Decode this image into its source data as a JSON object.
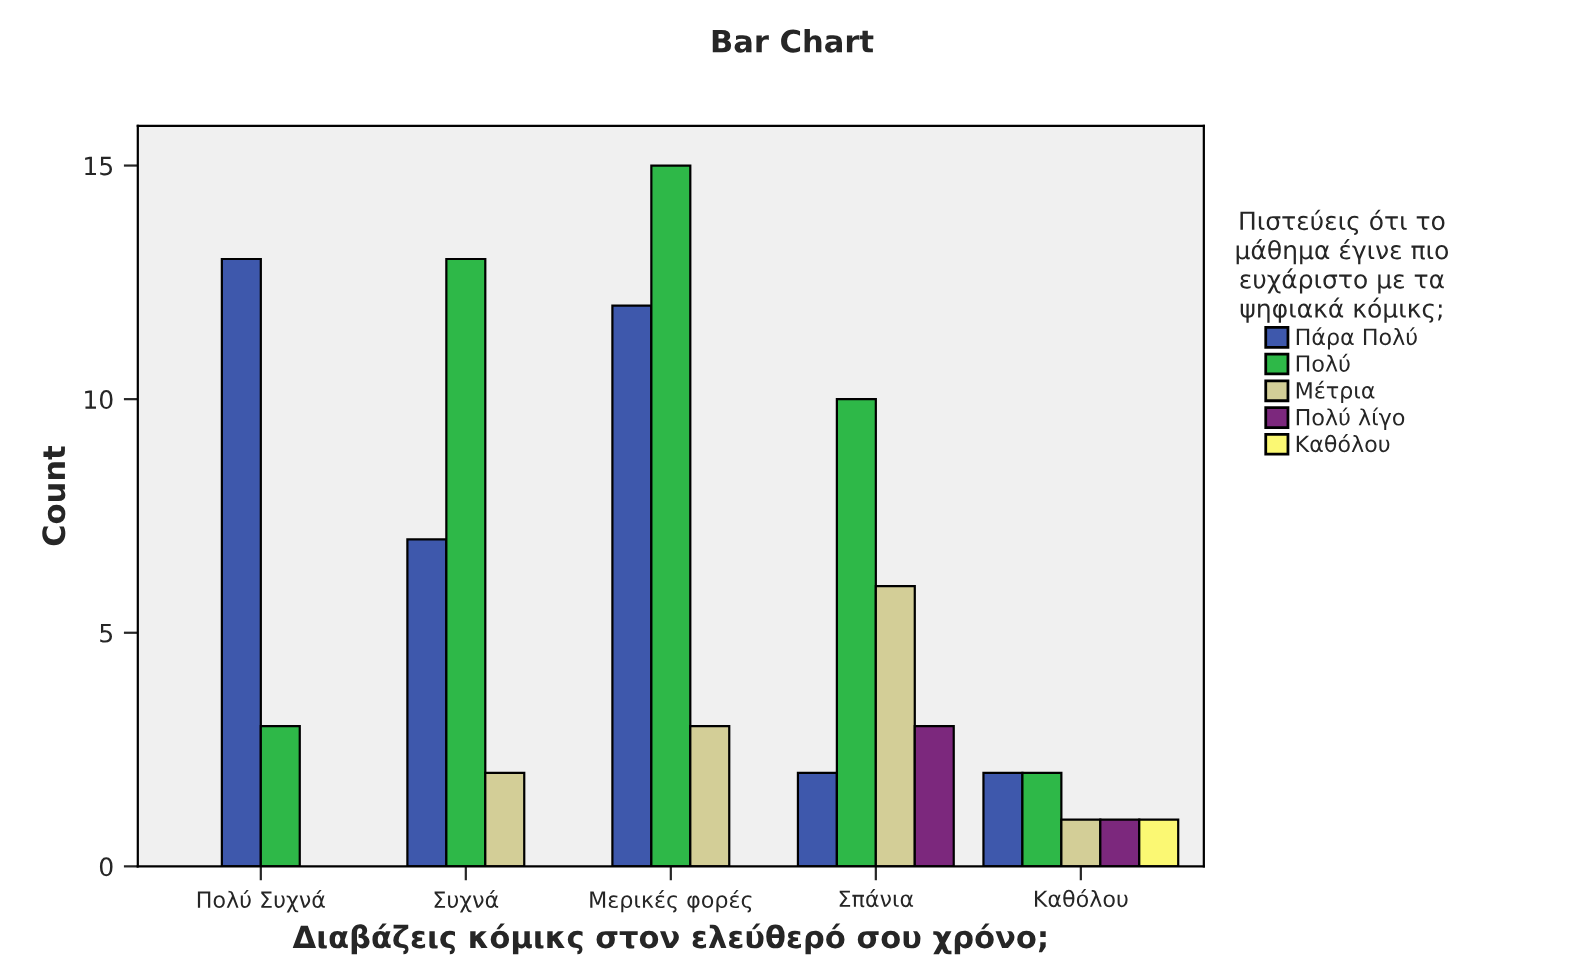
{
  "chart_data": {
    "type": "bar",
    "title": "Bar Chart",
    "xlabel": "Διαβάζεις κόμικς στον ελεύθερό σου χρόνο;",
    "ylabel": "Count",
    "legend_title": "Πιστεύεις ότι το\nμάθημα έγινε πιο\nευχάριστο με τα\nψηφιακά κόμικς;",
    "categories": [
      "Πολύ Συχνά",
      "Συχνά",
      "Μερικές φορές",
      "Σπάνια",
      "Καθόλου"
    ],
    "series": [
      {
        "name": "Πάρα Πολύ",
        "color": "#3e58ac",
        "values": [
          13,
          7,
          12,
          2,
          2
        ]
      },
      {
        "name": "Πολύ",
        "color": "#2eb848",
        "values": [
          3,
          13,
          15,
          10,
          2
        ]
      },
      {
        "name": "Μέτρια",
        "color": "#d3ce97",
        "values": [
          null,
          2,
          3,
          6,
          1
        ]
      },
      {
        "name": "Πολύ λίγο",
        "color": "#7c287d",
        "values": [
          null,
          null,
          null,
          3,
          1
        ]
      },
      {
        "name": "Καθόλου",
        "color": "#fbf873",
        "values": [
          null,
          null,
          null,
          null,
          1
        ]
      }
    ],
    "ylim": [
      0,
      15.85
    ],
    "yticks": [
      0,
      5,
      10,
      15
    ],
    "grid": false,
    "legend": "right"
  }
}
